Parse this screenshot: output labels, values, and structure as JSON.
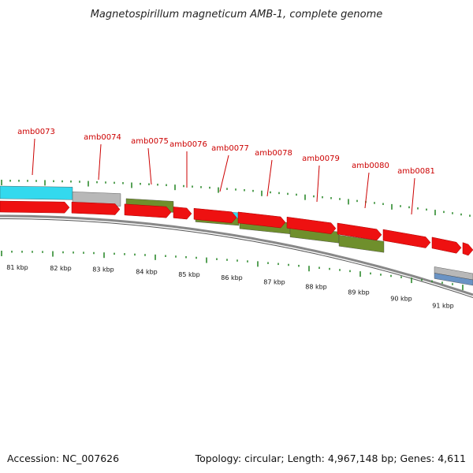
{
  "title": "Magnetospirillum magneticum AMB-1, complete genome",
  "footer": {
    "accession": "Accession: NC_007626",
    "topology": "Topology: circular; Length: 4,967,148 bp; Genes: 4,611"
  },
  "colors": {
    "cds": "#ee1111",
    "tick": "#2e8b2e",
    "label": "#cc0000",
    "backbone": "#888888",
    "cyan": "#33d9ee",
    "grey": "#b8b8b8",
    "olive": "#6f8f2c",
    "blue": "#6a93c4"
  },
  "genes": [
    {
      "name": "amb0073"
    },
    {
      "name": "amb0074"
    },
    {
      "name": "amb0075"
    },
    {
      "name": "amb0076"
    },
    {
      "name": "amb0077"
    },
    {
      "name": "amb0078"
    },
    {
      "name": "amb0079"
    },
    {
      "name": "amb0080"
    },
    {
      "name": "amb0081"
    }
  ],
  "kbp_labels": [
    "81 kbp",
    "82 kbp",
    "83 kbp",
    "84 kbp",
    "85 kbp",
    "86 kbp",
    "87 kbp",
    "88 kbp",
    "89 kbp",
    "90 kbp",
    "91 kbp"
  ]
}
